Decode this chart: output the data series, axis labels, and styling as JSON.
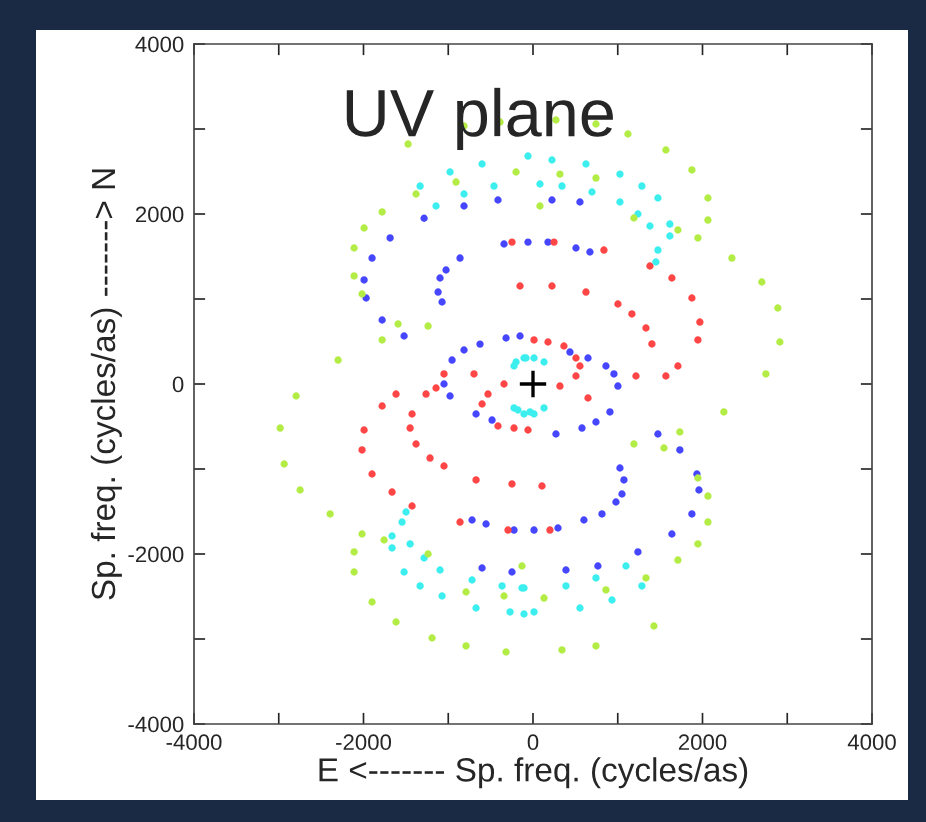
{
  "chart_data": {
    "type": "scatter",
    "title": "UV plane",
    "xlabel": "E <------- Sp. freq. (cycles/as)",
    "ylabel": "Sp. freq. (cycles/as) -------> N",
    "xlim": [
      -4000,
      4000
    ],
    "ylim": [
      -4000,
      4000
    ],
    "xticks": [
      -4000,
      {
        "value": -3000,
        "label": null
      },
      -2000,
      {
        "value": -1000,
        "label": null
      },
      0,
      {
        "value": 1000,
        "label": null
      },
      2000,
      {
        "value": 3000,
        "label": null
      },
      4000
    ],
    "yticks": [
      -4000,
      {
        "value": -3000,
        "label": null
      },
      -2000,
      {
        "value": -1000,
        "label": null
      },
      0,
      {
        "value": 1000,
        "label": null
      },
      2000,
      {
        "value": 3000,
        "label": null
      },
      4000
    ],
    "grid": false,
    "marker": "circle",
    "series": [
      {
        "color": "#4646ff",
        "x": [
          -1285,
          -1686,
          -1899,
          -1993,
          -1969,
          -1780,
          -1521,
          -955,
          -814,
          -625,
          -318,
          -814,
          -413,
          -342,
          -59,
          -861,
          -1026,
          -1097,
          -1120,
          -1073,
          224,
          554,
          177,
          507,
          672,
          -153,
          649,
          861,
          955,
          436,
          1002,
          908,
          743,
          578,
          271,
          1474,
          1733,
          1026,
          1073,
          1050,
          979,
          814,
          601,
          295,
          12,
          -224,
          1934,
          1958,
          1875,
          1639,
          1238,
          766,
          389,
          -248,
          -1050,
          -979,
          -672,
          -483,
          -719,
          -554,
          -601
        ],
        "values": [
          1950,
          1718,
          1482,
          1224,
          1012,
          753,
          565,
          282,
          400,
          470,
          541,
          2094,
          2165,
          1647,
          1670,
          1482,
          1341,
          1247,
          1082,
          965,
          2165,
          2141,
          1670,
          1600,
          1553,
          565,
          306,
          212,
          118,
          376,
          -24,
          -329,
          -447,
          -518,
          -588,
          -588,
          -776,
          -988,
          -1129,
          -1294,
          -1388,
          -1529,
          -1600,
          -1694,
          -1718,
          -1718,
          -1059,
          -1247,
          -1529,
          -1765,
          -1976,
          -2141,
          -2188,
          -2212,
          0,
          -141,
          -353,
          -424,
          -1600,
          -1647,
          -2165
        ]
      },
      {
        "color": "#ff4646",
        "x": [
          -248,
          -153,
          12,
          -1050,
          -696,
          -342,
          -1616,
          -1262,
          -1144,
          -531,
          248,
          837,
          1380,
          1639,
          1875,
          1969,
          1946,
          1710,
          1568,
          1403,
          1333,
          1167,
          1002,
          625,
          224,
          177,
          365,
          507,
          554,
          507,
          1215,
          318,
          -1780,
          -1993,
          -2017,
          -1899,
          -1663,
          -1427,
          -1427,
          -1450,
          -1380,
          -1215,
          -1050,
          -672,
          -248,
          -861,
          -295,
          -601,
          -413,
          -224,
          -59,
          106,
          200,
          649
        ],
        "values": [
          1670,
          1153,
          518,
          118,
          118,
          0,
          -118,
          -118,
          -47,
          -118,
          1670,
          1576,
          1388,
          1247,
          1012,
          729,
          518,
          212,
          94,
          471,
          659,
          824,
          941,
          1082,
          1153,
          494,
          447,
          306,
          212,
          94,
          94,
          -24,
          -259,
          -541,
          -776,
          -1059,
          -1271,
          -1435,
          -353,
          -518,
          -706,
          -871,
          -965,
          -1129,
          -1176,
          -1624,
          -1718,
          -235,
          -494,
          -518,
          -541,
          -1200,
          -1718,
          -165
        ]
      },
      {
        "color": "#3ceeee",
        "x": [
          -224,
          -106,
          12,
          130,
          -200,
          -82,
          -224,
          -106,
          12,
          130,
          -177,
          -35,
          -979,
          -1332,
          -1144,
          -814,
          -601,
          -460,
          -59,
          224,
          625,
          82,
          342,
          696,
          1026,
          1285,
          1474,
          1026,
          1238,
          1380,
          1615,
          1615,
          1474,
          1450,
          -1498,
          -1545,
          -1663,
          -1663,
          -1450,
          -1285,
          -1097,
          -1521,
          -1332,
          -1073,
          -719,
          -672,
          -365,
          -271,
          -130,
          12,
          -106,
          389,
          743,
          1097,
          1285,
          932,
          554,
          -106
        ],
        "values": [
          212,
          306,
          306,
          259,
          259,
          306,
          -282,
          -353,
          -353,
          -282,
          -306,
          -329,
          2494,
          2329,
          2094,
          2235,
          2588,
          2329,
          2682,
          2635,
          2588,
          2353,
          2329,
          2259,
          2470,
          2329,
          2188,
          2141,
          2000,
          1859,
          1882,
          1741,
          1576,
          1435,
          -1506,
          -1624,
          -1788,
          -1929,
          -1882,
          -2047,
          -2188,
          -2212,
          -2376,
          -2494,
          -2306,
          -2635,
          -2376,
          -2682,
          -2400,
          -2682,
          -2400,
          -2376,
          -2282,
          -2141,
          -2376,
          -2541,
          -2635,
          -2706
        ]
      },
      {
        "color": "#b4ec46",
        "x": [
          -814,
          -389,
          -1474,
          -908,
          -1380,
          -200,
          -1780,
          -1993,
          -2111,
          -2111,
          -2017,
          -1592,
          -1780,
          -1238,
          -2300,
          -2795,
          743,
          1120,
          1568,
          1875,
          318,
          743,
          82,
          2064,
          2064,
          1946,
          1710,
          1191,
          2347,
          2700,
          2889,
          2913,
          2748,
          271,
          -2983,
          -2936,
          -2748,
          -2394,
          -2017,
          -1757,
          -2111,
          -2111,
          -1899,
          -1616,
          -1238,
          -1191,
          -790,
          -790,
          -342,
          -318,
          -130,
          2252,
          1733,
          1545,
          1191,
          1946,
          2064,
          2064,
          1946,
          1710,
          1333,
          861,
          1427,
          743,
          342,
          130
        ],
        "values": [
          3035,
          3082,
          2823,
          2376,
          2235,
          2494,
          2024,
          1835,
          1600,
          1271,
          1059,
          706,
          518,
          682,
          282,
          -141,
          3059,
          2941,
          2753,
          2518,
          2470,
          2423,
          2094,
          2188,
          1929,
          1718,
          1812,
          1953,
          1482,
          1200,
          894,
          494,
          118,
          3106,
          -518,
          -941,
          -1247,
          -1529,
          -1765,
          -1835,
          -1976,
          -2212,
          -2565,
          -2800,
          -2000,
          -2988,
          -2447,
          -3082,
          -2494,
          -3153,
          -2141,
          -329,
          -565,
          -753,
          -706,
          -1106,
          -1318,
          -1624,
          -1882,
          -2071,
          -2282,
          -2423,
          -2847,
          -3082,
          -3129,
          -2518
        ]
      },
      {
        "color": "#000000",
        "marker": "cross",
        "x": [
          0
        ],
        "values": [
          0
        ]
      }
    ]
  }
}
